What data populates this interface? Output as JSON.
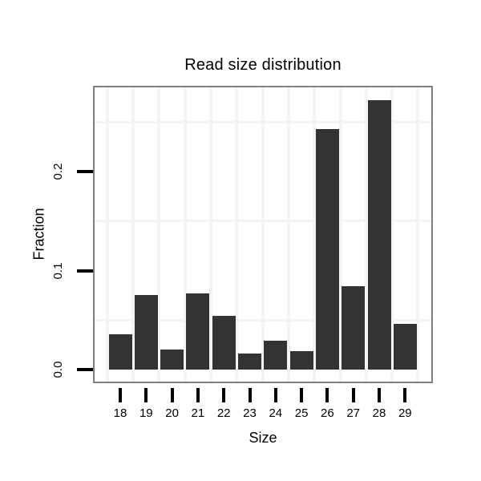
{
  "chart_data": {
    "type": "bar",
    "title": "Read size distribution",
    "xlabel": "Size",
    "ylabel": "Fraction",
    "categories": [
      "18",
      "19",
      "20",
      "21",
      "22",
      "23",
      "24",
      "25",
      "26",
      "27",
      "28",
      "29"
    ],
    "values": [
      0.036,
      0.075,
      0.02,
      0.077,
      0.054,
      0.016,
      0.029,
      0.019,
      0.243,
      0.084,
      0.272,
      0.046
    ],
    "ytick_labels": [
      "0.0",
      "0.1",
      "0.2"
    ],
    "ytick_values": [
      0.0,
      0.1,
      0.2
    ],
    "minor_gridline_values": [
      0.05,
      0.15,
      0.25
    ],
    "ylim": [
      -0.012,
      0.285
    ],
    "grid_on": true,
    "legend": "none",
    "bar_color": "#333333",
    "panel_background": "#ffffff",
    "panel_border_color": "#7f7f7f",
    "gridline_color": "#f4f4f4",
    "tick_color": "#000000",
    "text_color": "#000000"
  }
}
